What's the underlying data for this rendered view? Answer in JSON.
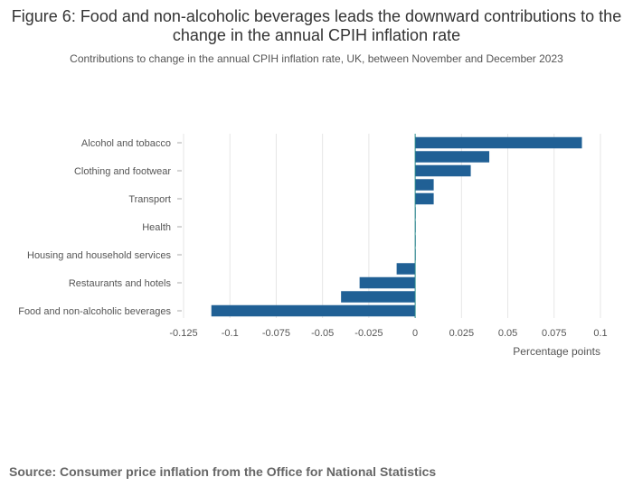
{
  "chart_data": {
    "type": "bar",
    "orientation": "horizontal",
    "title": "Figure 6: Food and non-alcoholic beverages leads the downward contributions to the change in the annual CPIH inflation rate",
    "subtitle": "Contributions to change in the annual CPIH inflation rate, UK, between November and December 2023",
    "xlabel": "Percentage points",
    "ylabel": "",
    "xlim": [
      -0.125,
      0.1
    ],
    "xticks": [
      -0.125,
      -0.1,
      -0.075,
      -0.05,
      -0.025,
      0,
      0.025,
      0.05,
      0.075,
      0.1
    ],
    "xtick_labels": [
      "-0.125",
      "-0.1",
      "-0.075",
      "-0.05",
      "-0.025",
      "0",
      "0.025",
      "0.05",
      "0.075",
      "0.1"
    ],
    "categories": [
      "Alcohol and tobacco",
      "",
      "Clothing and footwear",
      "",
      "Transport",
      "",
      "Health",
      "",
      "Housing and household services",
      "",
      "Restaurants and hotels",
      "",
      "Food and non-alcoholic beverages"
    ],
    "values": [
      0.09,
      0.04,
      0.03,
      0.01,
      0.01,
      0.0003,
      0.0003,
      0.0003,
      0.0003,
      -0.01,
      -0.03,
      -0.04,
      -0.11
    ],
    "grid": true,
    "legend": "none",
    "bar_color": "#206095",
    "zero_line_color": "#2a8a8a"
  },
  "source": "Source: Consumer price inflation from the Office for National Statistics"
}
